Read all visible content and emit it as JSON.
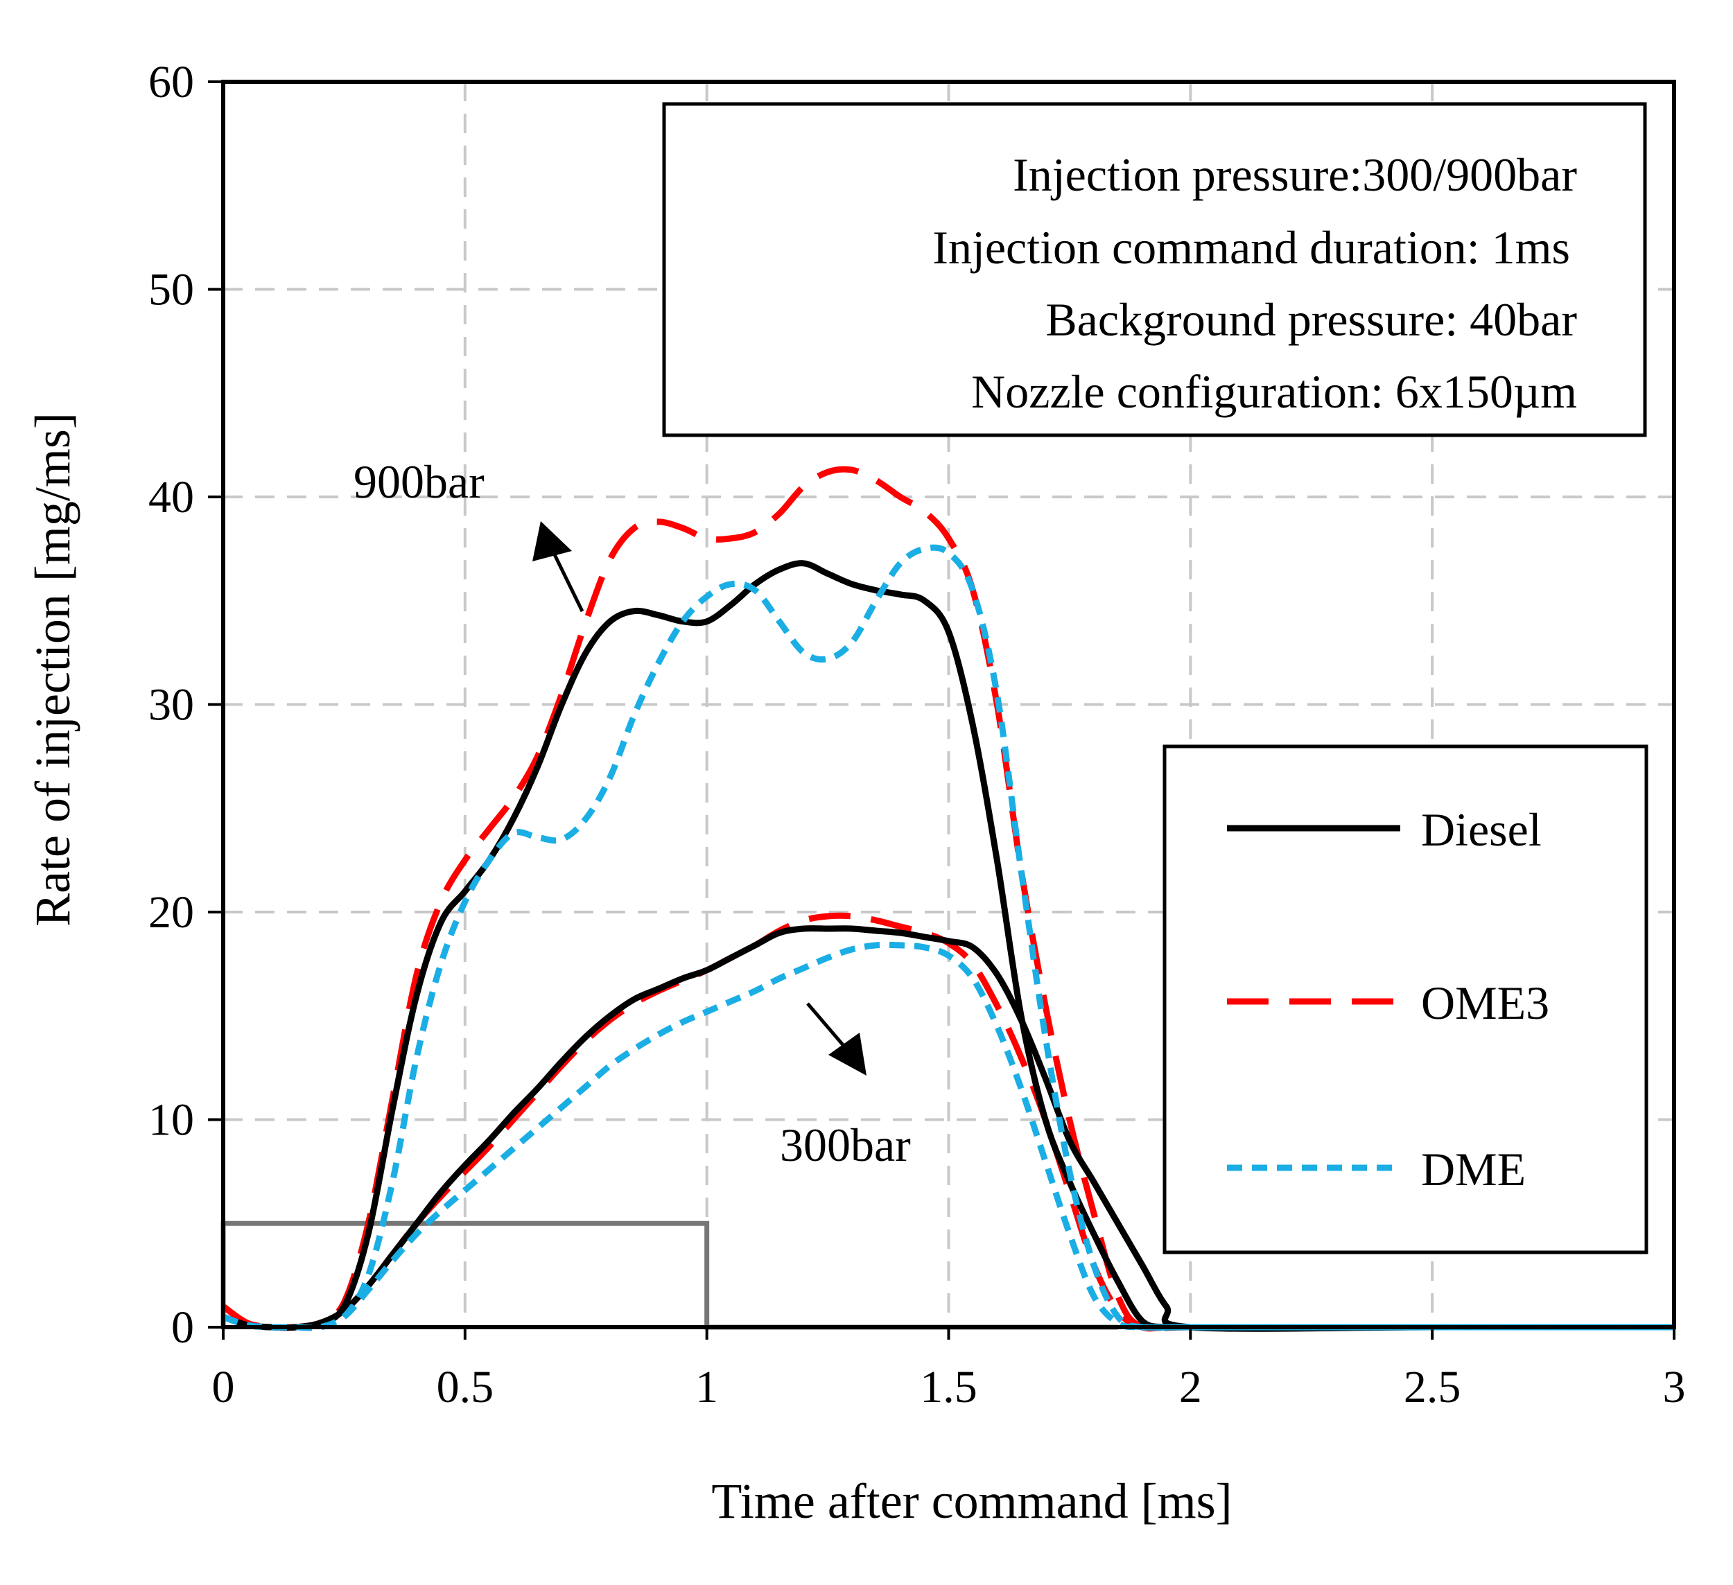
{
  "chart_data": {
    "type": "line",
    "xlabel": "Time after command [ms]",
    "ylabel": "Rate of  injection [mg/ms]",
    "xlim": [
      0,
      3
    ],
    "ylim": [
      0,
      60
    ],
    "x_ticks": [
      0,
      0.5,
      1,
      1.5,
      2,
      2.5,
      3
    ],
    "x_tick_labels": [
      "0",
      "0.5",
      "1",
      "1.5",
      "2",
      "2.5",
      "3"
    ],
    "y_ticks": [
      0,
      10,
      20,
      30,
      40,
      50,
      60
    ],
    "y_tick_labels": [
      "0",
      "10",
      "20",
      "30",
      "40",
      "50",
      "60"
    ],
    "grid": true,
    "legend_position": "right",
    "colors": {
      "Diesel": "#000000",
      "OME3": "#ff0000",
      "DME": "#1aaee5",
      "command": "#767676",
      "grid": "#c8c8c8"
    },
    "info_box": [
      "Injection pressure:300/900bar",
      "Injection command duration: 1ms",
      "Background pressure: 40bar",
      "Nozzle configuration: 6x150µm"
    ],
    "annotations": [
      {
        "text": "900bar",
        "x": 0.57,
        "y": 40
      },
      {
        "text": "300bar",
        "x": 1.3,
        "y": 8.6
      }
    ],
    "legend": [
      {
        "name": "Diesel",
        "style": "solid"
      },
      {
        "name": "OME3",
        "style": "long-dash"
      },
      {
        "name": "DME",
        "style": "short-dash"
      }
    ],
    "command_signal": {
      "x": [
        0,
        0,
        1,
        1,
        1.85
      ],
      "y": [
        0,
        5,
        5,
        0,
        0
      ]
    },
    "series": [
      {
        "name": "Diesel",
        "pressure": "900bar",
        "x": [
          0,
          0.05,
          0.1,
          0.15,
          0.2,
          0.25,
          0.3,
          0.35,
          0.4,
          0.45,
          0.5,
          0.55,
          0.6,
          0.65,
          0.7,
          0.75,
          0.8,
          0.85,
          0.9,
          0.95,
          1.0,
          1.05,
          1.1,
          1.15,
          1.2,
          1.25,
          1.3,
          1.35,
          1.4,
          1.45,
          1.5,
          1.55,
          1.6,
          1.65,
          1.7,
          1.75,
          1.8,
          1.85,
          1.9,
          1.95,
          2.0,
          2.5,
          3.0
        ],
        "y": [
          0.5,
          0.1,
          0,
          0,
          0.2,
          1,
          4.5,
          10.5,
          16,
          19.5,
          21,
          22.5,
          24.5,
          27,
          30,
          32.5,
          34,
          34.5,
          34.3,
          34,
          34,
          34.8,
          35.8,
          36.5,
          36.8,
          36.3,
          35.8,
          35.5,
          35.3,
          35,
          33.5,
          29,
          22.5,
          15,
          10,
          7,
          4.5,
          2.2,
          0.3,
          0,
          0,
          0,
          0
        ]
      },
      {
        "name": "OME3",
        "pressure": "900bar",
        "x": [
          0,
          0.05,
          0.1,
          0.15,
          0.2,
          0.25,
          0.3,
          0.35,
          0.4,
          0.45,
          0.5,
          0.55,
          0.6,
          0.65,
          0.7,
          0.75,
          0.8,
          0.85,
          0.9,
          0.95,
          1.0,
          1.05,
          1.1,
          1.15,
          1.2,
          1.25,
          1.3,
          1.35,
          1.4,
          1.45,
          1.5,
          1.55,
          1.6,
          1.65,
          1.7,
          1.75,
          1.8,
          1.85,
          1.9,
          2.0,
          2.5,
          3.0
        ],
        "y": [
          1,
          0.2,
          0,
          0,
          0.2,
          1.2,
          5,
          11,
          17,
          20.5,
          22.5,
          24,
          25.5,
          27.5,
          30.5,
          34,
          37,
          38.5,
          38.8,
          38.5,
          38,
          38,
          38.3,
          39.2,
          40.5,
          41.2,
          41.3,
          40.8,
          40,
          39.3,
          38,
          35.5,
          30,
          22,
          15.5,
          10,
          5.5,
          1.5,
          0,
          0,
          0,
          0
        ]
      },
      {
        "name": "DME",
        "pressure": "900bar",
        "x": [
          0,
          0.05,
          0.1,
          0.15,
          0.2,
          0.25,
          0.3,
          0.35,
          0.4,
          0.45,
          0.5,
          0.55,
          0.6,
          0.65,
          0.7,
          0.75,
          0.8,
          0.85,
          0.9,
          0.95,
          1.0,
          1.05,
          1.1,
          1.15,
          1.2,
          1.25,
          1.3,
          1.35,
          1.4,
          1.45,
          1.5,
          1.55,
          1.6,
          1.65,
          1.7,
          1.75,
          1.8,
          1.85,
          1.9,
          2.0,
          2.5,
          3.0
        ],
        "y": [
          0.5,
          0.1,
          0,
          0,
          0,
          0.5,
          2.5,
          7,
          13,
          17.5,
          20.5,
          22.5,
          23.8,
          23.6,
          23.5,
          24.5,
          26.5,
          29.5,
          32,
          34,
          35.2,
          35.8,
          35.5,
          34,
          32.5,
          32.2,
          33,
          35,
          36.8,
          37.5,
          37.3,
          35.5,
          30.5,
          22,
          14,
          7.5,
          3,
          0.5,
          0,
          0,
          0,
          0
        ]
      },
      {
        "name": "Diesel",
        "pressure": "300bar",
        "x": [
          0,
          0.05,
          0.1,
          0.15,
          0.2,
          0.25,
          0.3,
          0.35,
          0.4,
          0.45,
          0.5,
          0.55,
          0.6,
          0.65,
          0.7,
          0.75,
          0.8,
          0.85,
          0.9,
          0.95,
          1.0,
          1.05,
          1.1,
          1.15,
          1.2,
          1.25,
          1.3,
          1.35,
          1.4,
          1.45,
          1.5,
          1.55,
          1.6,
          1.65,
          1.7,
          1.75,
          1.8,
          1.85,
          1.9,
          1.95,
          2.0,
          2.5,
          3.0
        ],
        "y": [
          0.5,
          0.1,
          0,
          0,
          0.2,
          0.8,
          2,
          3.5,
          5,
          6.5,
          7.8,
          9,
          10.3,
          11.5,
          12.8,
          14,
          15,
          15.8,
          16.3,
          16.8,
          17.2,
          17.8,
          18.4,
          19,
          19.2,
          19.2,
          19.2,
          19.1,
          19,
          18.8,
          18.6,
          18.3,
          17,
          14.8,
          12,
          9,
          7,
          5,
          3,
          1,
          0,
          0,
          0
        ]
      },
      {
        "name": "OME3",
        "pressure": "300bar",
        "x": [
          0,
          0.05,
          0.1,
          0.15,
          0.2,
          0.25,
          0.3,
          0.35,
          0.4,
          0.45,
          0.5,
          0.55,
          0.6,
          0.65,
          0.7,
          0.75,
          0.8,
          0.85,
          0.9,
          0.95,
          1.0,
          1.05,
          1.1,
          1.15,
          1.2,
          1.25,
          1.3,
          1.35,
          1.4,
          1.45,
          1.5,
          1.55,
          1.6,
          1.65,
          1.7,
          1.75,
          1.8,
          1.85,
          1.9,
          2.0,
          2.5,
          3.0
        ],
        "y": [
          1,
          0.2,
          0,
          0,
          0.2,
          0.8,
          2,
          3.5,
          5,
          6.3,
          7.5,
          8.7,
          10,
          11.3,
          12.6,
          13.8,
          14.8,
          15.6,
          16.2,
          16.7,
          17.2,
          17.8,
          18.4,
          19.1,
          19.6,
          19.8,
          19.8,
          19.6,
          19.3,
          19,
          18.5,
          17.5,
          15.5,
          13,
          10,
          6.5,
          3,
          0.8,
          0,
          0,
          0,
          0
        ]
      },
      {
        "name": "DME",
        "pressure": "300bar",
        "x": [
          0,
          0.05,
          0.1,
          0.15,
          0.2,
          0.25,
          0.3,
          0.35,
          0.4,
          0.45,
          0.5,
          0.55,
          0.6,
          0.65,
          0.7,
          0.75,
          0.8,
          0.85,
          0.9,
          0.95,
          1.0,
          1.05,
          1.1,
          1.15,
          1.2,
          1.25,
          1.3,
          1.35,
          1.4,
          1.45,
          1.5,
          1.55,
          1.6,
          1.65,
          1.7,
          1.75,
          1.8,
          1.85,
          1.9,
          2.0,
          2.5,
          3.0
        ],
        "y": [
          0.5,
          0.1,
          0,
          0,
          0,
          0.5,
          1.8,
          3.2,
          4.5,
          5.6,
          6.6,
          7.6,
          8.6,
          9.6,
          10.6,
          11.6,
          12.6,
          13.4,
          14.1,
          14.7,
          15.2,
          15.7,
          16.2,
          16.8,
          17.3,
          17.8,
          18.2,
          18.4,
          18.4,
          18.3,
          17.9,
          16.8,
          14.5,
          11.5,
          8,
          4.5,
          1.5,
          0.2,
          0,
          0,
          0,
          0
        ]
      }
    ]
  }
}
